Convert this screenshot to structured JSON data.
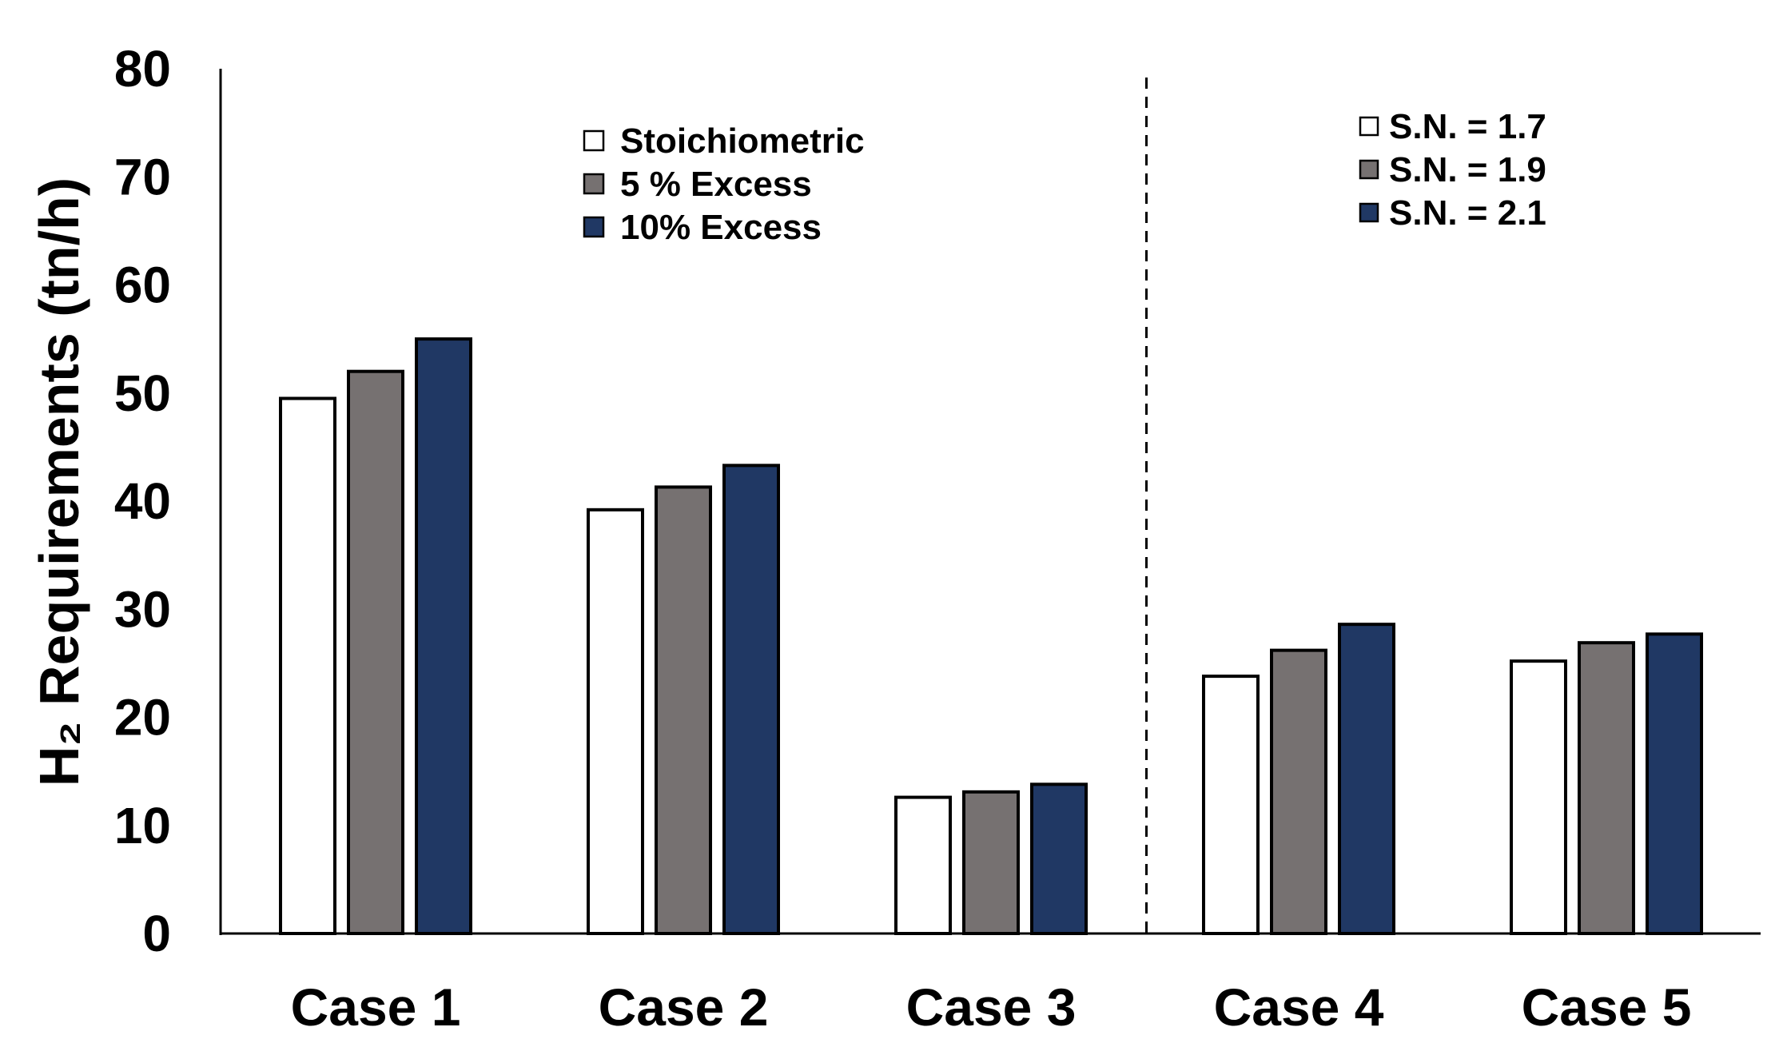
{
  "chart_data": {
    "type": "bar",
    "ylabel": "H₂ Requirements (tn/h)",
    "ylim": [
      0,
      80
    ],
    "yticks": [
      0,
      10,
      20,
      30,
      40,
      50,
      60,
      70,
      80
    ],
    "grid": false,
    "categories": [
      "Case 1",
      "Case 2",
      "Case 3",
      "Case 4",
      "Case 5"
    ],
    "series": [
      {
        "color": "#ffffff",
        "values": [
          49.5,
          39.2,
          12.6,
          23.8,
          25.2
        ]
      },
      {
        "color": "#767171",
        "values": [
          52.0,
          41.3,
          13.1,
          26.2,
          26.9
        ]
      },
      {
        "color": "#203864",
        "values": [
          55.0,
          43.3,
          13.8,
          28.6,
          27.7
        ]
      }
    ],
    "divider_after_category": "Case 3",
    "legends": [
      {
        "group": "Case 1 – Case 3",
        "placement": "top-center-left",
        "entries": [
          {
            "label": "Stoichiometric",
            "color": "#ffffff"
          },
          {
            "label": "5 % Excess",
            "color": "#767171"
          },
          {
            "label": "10% Excess",
            "color": "#203864"
          }
        ]
      },
      {
        "group": "Case 4 – Case 5",
        "placement": "top-right",
        "entries": [
          {
            "label": "S.N. = 1.7",
            "color": "#ffffff"
          },
          {
            "label": "S.N. = 1.9",
            "color": "#767171"
          },
          {
            "label": "S.N. = 2.1",
            "color": "#203864"
          }
        ]
      }
    ]
  }
}
